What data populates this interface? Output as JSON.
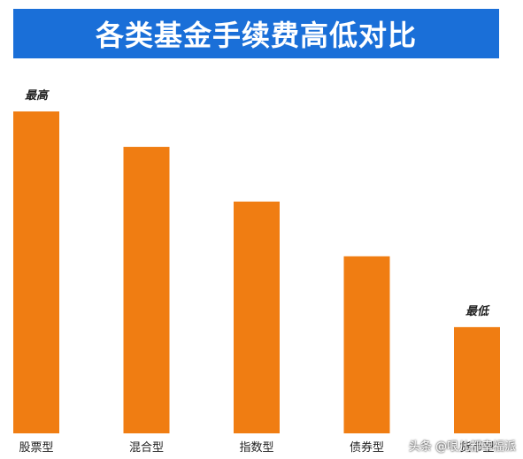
{
  "title": "各类基金手续费高低对比",
  "chart_data": {
    "type": "bar",
    "title": "各类基金手续费高低对比",
    "categories": [
      "股票型",
      "混合型",
      "指数型",
      "债券型",
      "货币型"
    ],
    "values": [
      100,
      89,
      72,
      55,
      33
    ],
    "annotations": [
      {
        "category": "股票型",
        "text": "最高"
      },
      {
        "category": "货币型",
        "text": "最低"
      }
    ],
    "xlabel": "",
    "ylabel": "",
    "ylim": [
      0,
      100
    ],
    "grid": false,
    "bar_color": "#f07d12"
  },
  "watermark": "头条 @哏儿都幸福派",
  "colors": {
    "banner": "#1a6fd8",
    "title_text": "#ffffff",
    "bar": "#f07d12",
    "label_text": "#222222"
  }
}
